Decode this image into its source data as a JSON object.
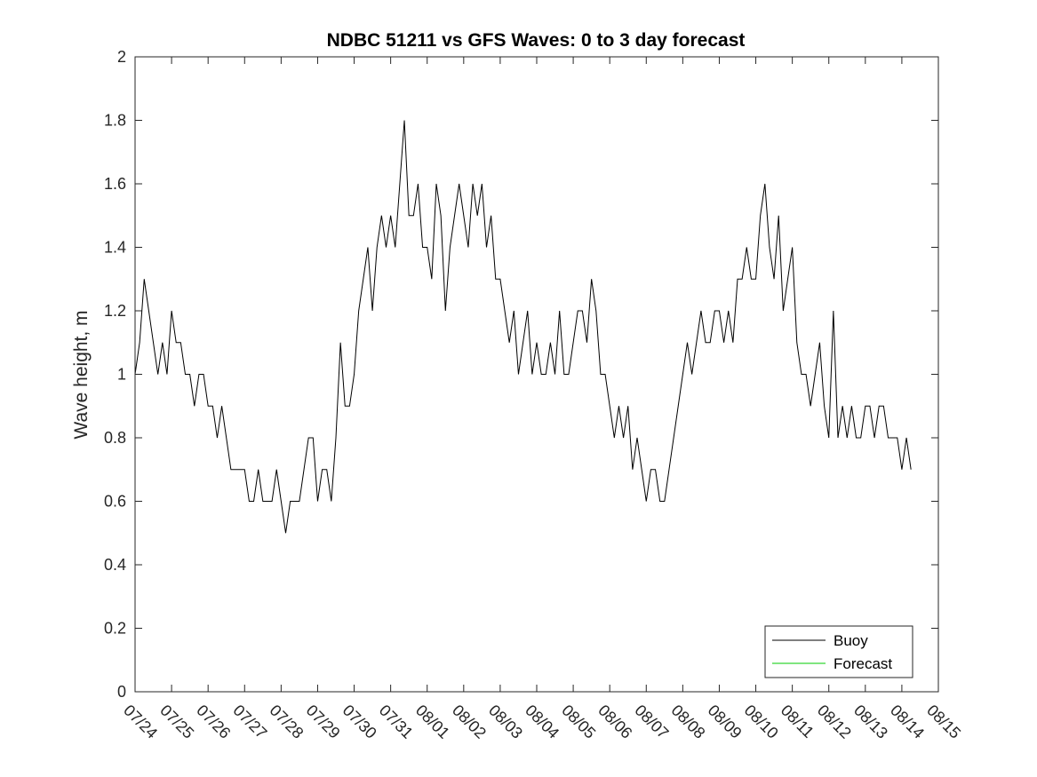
{
  "chart_data": {
    "type": "line",
    "title": "NDBC 51211 vs GFS Waves: 0 to 3 day forecast",
    "xlabel": "",
    "ylabel": "Wave height, m",
    "ylim": [
      0,
      2
    ],
    "yticks": [
      "0",
      "0.2",
      "0.4",
      "0.6",
      "0.8",
      "1",
      "1.2",
      "1.4",
      "1.6",
      "1.8",
      "2"
    ],
    "xticks": [
      "07/24",
      "07/25",
      "07/26",
      "07/27",
      "07/28",
      "07/29",
      "07/30",
      "07/31",
      "08/01",
      "08/02",
      "08/03",
      "08/04",
      "08/05",
      "08/06",
      "08/07",
      "08/08",
      "08/09",
      "08/10",
      "08/11",
      "08/12",
      "08/13",
      "08/14",
      "08/15"
    ],
    "xlim": [
      "07/24 00:00",
      "08/15 00:00"
    ],
    "grid": false,
    "legend_position": "bottom-right",
    "colors": {
      "Buoy": "#000000",
      "Forecast": "#00cc00"
    },
    "series": [
      {
        "name": "Buoy",
        "x": [
          "07/24 00:00",
          "07/24 03:00",
          "07/24 06:00",
          "07/24 09:00",
          "07/24 12:00",
          "07/24 15:00",
          "07/24 18:00",
          "07/24 21:00",
          "07/25 00:00",
          "07/25 03:00",
          "07/25 06:00",
          "07/25 09:00",
          "07/25 12:00",
          "07/25 15:00",
          "07/25 18:00",
          "07/25 21:00",
          "07/26 00:00",
          "07/26 03:00",
          "07/26 06:00",
          "07/26 09:00",
          "07/26 12:00",
          "07/26 15:00",
          "07/26 18:00",
          "07/26 21:00",
          "07/27 00:00",
          "07/27 03:00",
          "07/27 06:00",
          "07/27 09:00",
          "07/27 12:00",
          "07/27 15:00",
          "07/27 18:00",
          "07/27 21:00",
          "07/28 00:00",
          "07/28 03:00",
          "07/28 06:00",
          "07/28 09:00",
          "07/28 12:00",
          "07/28 15:00",
          "07/28 18:00",
          "07/28 21:00",
          "07/29 00:00",
          "07/29 03:00",
          "07/29 06:00",
          "07/29 09:00",
          "07/29 12:00",
          "07/29 15:00",
          "07/29 18:00",
          "07/29 21:00",
          "07/30 00:00",
          "07/30 03:00",
          "07/30 06:00",
          "07/30 09:00",
          "07/30 12:00",
          "07/30 15:00",
          "07/30 18:00",
          "07/30 21:00",
          "07/31 00:00",
          "07/31 03:00",
          "07/31 06:00",
          "07/31 09:00",
          "07/31 12:00",
          "07/31 15:00",
          "07/31 18:00",
          "07/31 21:00",
          "08/01 00:00",
          "08/01 03:00",
          "08/01 06:00",
          "08/01 09:00",
          "08/01 12:00",
          "08/01 15:00",
          "08/01 18:00",
          "08/01 21:00",
          "08/02 00:00",
          "08/02 03:00",
          "08/02 06:00",
          "08/02 09:00",
          "08/02 12:00",
          "08/02 15:00",
          "08/02 18:00",
          "08/02 21:00",
          "08/03 00:00",
          "08/03 03:00",
          "08/03 06:00",
          "08/03 09:00",
          "08/03 12:00",
          "08/03 15:00",
          "08/03 18:00",
          "08/03 21:00",
          "08/04 00:00",
          "08/04 03:00",
          "08/04 06:00",
          "08/04 09:00",
          "08/04 12:00",
          "08/04 15:00",
          "08/04 18:00",
          "08/04 21:00",
          "08/05 00:00",
          "08/05 03:00",
          "08/05 06:00",
          "08/05 09:00",
          "08/05 12:00",
          "08/05 15:00",
          "08/05 18:00",
          "08/05 21:00",
          "08/06 00:00",
          "08/06 03:00",
          "08/06 06:00",
          "08/06 09:00",
          "08/06 12:00",
          "08/06 15:00",
          "08/06 18:00",
          "08/06 21:00",
          "08/07 00:00",
          "08/07 03:00",
          "08/07 06:00",
          "08/07 09:00",
          "08/07 12:00",
          "08/07 15:00",
          "08/07 18:00",
          "08/07 21:00",
          "08/08 00:00",
          "08/08 03:00",
          "08/08 06:00",
          "08/08 09:00",
          "08/08 12:00",
          "08/08 15:00",
          "08/08 18:00",
          "08/08 21:00",
          "08/09 00:00",
          "08/09 03:00",
          "08/09 06:00",
          "08/09 09:00",
          "08/09 12:00",
          "08/09 15:00",
          "08/09 18:00",
          "08/09 21:00",
          "08/10 00:00",
          "08/10 03:00",
          "08/10 06:00",
          "08/10 09:00",
          "08/10 12:00",
          "08/10 15:00",
          "08/10 18:00",
          "08/10 21:00",
          "08/11 00:00",
          "08/11 03:00",
          "08/11 06:00",
          "08/11 09:00",
          "08/11 12:00",
          "08/11 15:00",
          "08/11 18:00",
          "08/11 21:00",
          "08/12 00:00",
          "08/12 03:00",
          "08/12 06:00",
          "08/12 09:00",
          "08/12 12:00",
          "08/12 15:00",
          "08/12 18:00",
          "08/12 21:00",
          "08/13 00:00",
          "08/13 03:00",
          "08/13 06:00",
          "08/13 09:00",
          "08/13 12:00",
          "08/13 15:00",
          "08/13 18:00",
          "08/13 21:00",
          "08/14 00:00",
          "08/14 03:00",
          "08/14 06:00"
        ],
        "values": [
          1.0,
          1.1,
          1.3,
          1.2,
          1.1,
          1.0,
          1.1,
          1.0,
          1.2,
          1.1,
          1.1,
          1.0,
          1.0,
          0.9,
          1.0,
          1.0,
          0.9,
          0.9,
          0.8,
          0.9,
          0.8,
          0.7,
          0.7,
          0.7,
          0.7,
          0.6,
          0.6,
          0.7,
          0.6,
          0.6,
          0.6,
          0.7,
          0.6,
          0.5,
          0.6,
          0.6,
          0.6,
          0.7,
          0.8,
          0.8,
          0.6,
          0.7,
          0.7,
          0.6,
          0.8,
          1.1,
          0.9,
          0.9,
          1.0,
          1.2,
          1.3,
          1.4,
          1.2,
          1.4,
          1.5,
          1.4,
          1.5,
          1.4,
          1.6,
          1.8,
          1.5,
          1.5,
          1.6,
          1.4,
          1.4,
          1.3,
          1.6,
          1.5,
          1.2,
          1.4,
          1.5,
          1.6,
          1.5,
          1.4,
          1.6,
          1.5,
          1.6,
          1.4,
          1.5,
          1.3,
          1.3,
          1.2,
          1.1,
          1.2,
          1.0,
          1.1,
          1.2,
          1.0,
          1.1,
          1.0,
          1.0,
          1.1,
          1.0,
          1.2,
          1.0,
          1.0,
          1.1,
          1.2,
          1.2,
          1.1,
          1.3,
          1.2,
          1.0,
          1.0,
          0.9,
          0.8,
          0.9,
          0.8,
          0.9,
          0.7,
          0.8,
          0.7,
          0.6,
          0.7,
          0.7,
          0.6,
          0.6,
          0.7,
          0.8,
          0.9,
          1.0,
          1.1,
          1.0,
          1.1,
          1.2,
          1.1,
          1.1,
          1.2,
          1.2,
          1.1,
          1.2,
          1.1,
          1.3,
          1.3,
          1.4,
          1.3,
          1.3,
          1.5,
          1.6,
          1.4,
          1.3,
          1.5,
          1.2,
          1.3,
          1.4,
          1.1,
          1.0,
          1.0,
          0.9,
          1.0,
          1.1,
          0.9,
          0.8,
          1.2,
          0.8,
          0.9,
          0.8,
          0.9,
          0.8,
          0.8,
          0.9,
          0.9,
          0.8,
          0.9,
          0.9,
          0.8,
          0.8,
          0.8,
          0.7,
          0.8,
          0.7
        ]
      },
      {
        "name": "Forecast",
        "x": [],
        "values": []
      }
    ]
  }
}
